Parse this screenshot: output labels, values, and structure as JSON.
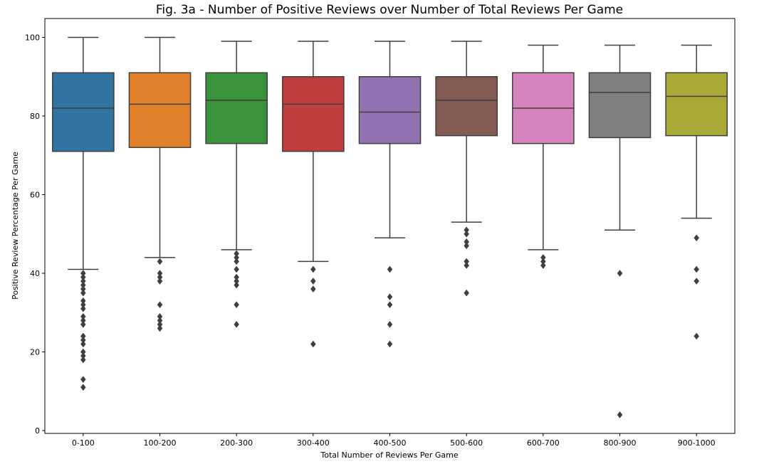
{
  "chart_data": {
    "type": "box",
    "title": "Fig. 3a - Number of Positive Reviews over Number of Total Reviews Per Game",
    "xlabel": "Total Number of Reviews Per Game",
    "ylabel": "Positive Review Percentage Per Game",
    "ylim": [
      -1,
      104
    ],
    "yticks": [
      0,
      20,
      40,
      60,
      80,
      100
    ],
    "grid": false,
    "legend": "none",
    "categories": [
      "0-100",
      "100-200",
      "200-300",
      "300-400",
      "400-500",
      "500-600",
      "600-700",
      "800-900",
      "900-1000"
    ],
    "boxes": [
      {
        "category": "0-100",
        "color": "#3274a1",
        "whisker_low": 41,
        "q1": 71,
        "median": 82,
        "q3": 91,
        "whisker_high": 100,
        "outliers": [
          40,
          39,
          38,
          37,
          36,
          35,
          33,
          32,
          31,
          29,
          28,
          27,
          24,
          23,
          22,
          20,
          19,
          18,
          13,
          11
        ]
      },
      {
        "category": "100-200",
        "color": "#e1812c",
        "whisker_low": 44,
        "q1": 72,
        "median": 83,
        "q3": 91,
        "whisker_high": 100,
        "outliers": [
          43,
          40,
          39,
          38,
          32,
          29,
          28,
          27,
          26
        ]
      },
      {
        "category": "200-300",
        "color": "#3a923a",
        "whisker_low": 46,
        "q1": 73,
        "median": 84,
        "q3": 91,
        "whisker_high": 99,
        "outliers": [
          45,
          44,
          43,
          41,
          39,
          38,
          37,
          32,
          27
        ]
      },
      {
        "category": "300-400",
        "color": "#c03d3e",
        "whisker_low": 43,
        "q1": 71,
        "median": 83,
        "q3": 90,
        "whisker_high": 99,
        "outliers": [
          41,
          38,
          36,
          22
        ]
      },
      {
        "category": "400-500",
        "color": "#9372b2",
        "whisker_low": 49,
        "q1": 73,
        "median": 81,
        "q3": 90,
        "whisker_high": 99,
        "outliers": [
          41,
          34,
          32,
          27,
          22
        ]
      },
      {
        "category": "500-600",
        "color": "#845b53",
        "whisker_low": 53,
        "q1": 75,
        "median": 84,
        "q3": 90,
        "whisker_high": 99,
        "outliers": [
          51,
          50,
          48,
          47,
          43,
          42,
          35
        ]
      },
      {
        "category": "600-700",
        "color": "#d684bd",
        "whisker_low": 46,
        "q1": 73,
        "median": 82,
        "q3": 91,
        "whisker_high": 98,
        "outliers": [
          44,
          43,
          42
        ]
      },
      {
        "category": "800-900",
        "color": "#7f7f7f",
        "whisker_low": 51,
        "q1": 74.5,
        "median": 86,
        "q3": 91,
        "whisker_high": 98,
        "outliers": [
          40,
          4
        ]
      },
      {
        "category": "900-1000",
        "color": "#a9aa35",
        "whisker_low": 54,
        "q1": 75,
        "median": 85,
        "q3": 91,
        "whisker_high": 98,
        "outliers": [
          49,
          41,
          38,
          24
        ]
      }
    ]
  }
}
